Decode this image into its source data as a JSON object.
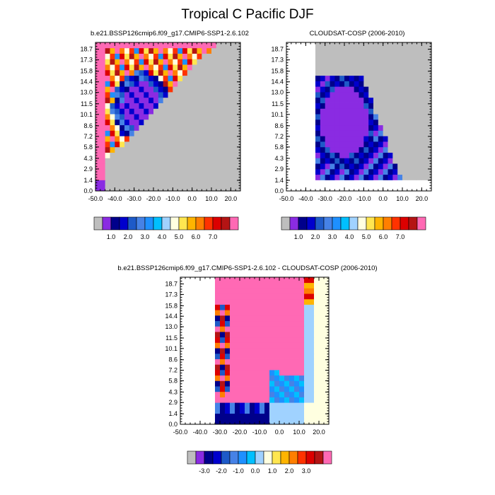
{
  "figure_title": "Tropical C Pacific DJF",
  "colors": {
    "nodata": "#bebebe",
    "pal_abs": [
      "#bebebe",
      "#8a2be2",
      "#00008b",
      "#0000cd",
      "#1e5ac8",
      "#4682e6",
      "#1e90ff",
      "#00bfff",
      "#a0d2ff",
      "#ffffe0",
      "#ffe650",
      "#ffb400",
      "#ff7f00",
      "#ff3200",
      "#dc0000",
      "#b41414",
      "#ff69b4"
    ],
    "pal_diff": [
      "#bebebe",
      "#8a2be2",
      "#00008b",
      "#0000cd",
      "#1e5ac8",
      "#4682e6",
      "#1e90ff",
      "#00bfff",
      "#a0d2ff",
      "#ffffe0",
      "#ffe650",
      "#ffb400",
      "#ff7f00",
      "#ff3200",
      "#dc0000",
      "#b41414",
      "#ff69b4"
    ]
  },
  "colorbar_abs": {
    "labels": [
      "1.0",
      "2.0",
      "3.0",
      "4.0",
      "5.0",
      "6.0",
      "7.0"
    ]
  },
  "colorbar_diff": {
    "labels": [
      "-3.0",
      "-2.0",
      "-1.0",
      "0.0",
      "1.0",
      "2.0",
      "3.0"
    ]
  },
  "chart_data": [
    {
      "type": "heatmap",
      "title": "b.e21.BSSP126cmip6.f09_g17.CMIP6-SSP1-2.6.102",
      "x_ticks": [
        "-50.0",
        "-40.0",
        "-30.0",
        "-20.0",
        "-10.0",
        "0.0",
        "10.0",
        "20.0"
      ],
      "y_ticks": [
        "0.0",
        "1.4",
        "2.9",
        "4.3",
        "5.8",
        "7.2",
        "8.6",
        "10.1",
        "11.5",
        "13.0",
        "14.4",
        "15.8",
        "17.3",
        "18.7"
      ],
      "xlim": [
        -50,
        25
      ],
      "ylim": [
        0,
        19.6
      ],
      "x_start": -50,
      "x_step": 2.5,
      "y_start": 0,
      "y_step": 0.72,
      "rows": [
        "0-----------------------------",
        "0-----------------------------",
        "0-----------------------------",
        "0-----------------------------",
        "0-----------------------------",
        "0-----------------------------",
        "0-------------------------",
        "0-----------------------------",
        "0---------------------------",
        "0----------------------",
        "0----------------------",
        "0-----------------------------",
        "0-----------------------------",
        "0------------------------------",
        "0---------------------------",
        "0---------------------------",
        "0---------------------------",
        "0---------------------------",
        "0---------------------------",
        "0---------------------------",
        "0-----------------------------",
        "0-----------------------------",
        "0-----------------------------",
        "0-----------------------------",
        "0-----------------------------",
        "0-----------------------------",
        "0-----------------------------"
      ]
    },
    {
      "type": "heatmap",
      "title": "CLOUDSAT-COSP (2006-2010)",
      "x_ticks": [
        "-50.0",
        "-40.0",
        "-30.0",
        "-20.0",
        "-10.0",
        "0.0",
        "10.0",
        "20.0"
      ],
      "y_ticks": [
        "0.0",
        "1.4",
        "2.9",
        "4.3",
        "5.8",
        "7.2",
        "8.6",
        "10.1",
        "11.5",
        "13.0",
        "14.4",
        "15.8",
        "17.3",
        "18.7"
      ],
      "xlim": [
        -50,
        25
      ],
      "ylim": [
        0,
        19.6
      ],
      "x_start": -50,
      "x_step": 2.5,
      "y_start": 0,
      "y_step": 0.72,
      "rows": []
    },
    {
      "type": "heatmap",
      "title": "b.e21.BSSP126cmip6.f09_g17.CMIP6-SSP1-2.6.102 - CLOUDSAT-COSP (2006-2010)",
      "x_ticks": [
        "-50.0",
        "-40.0",
        "-30.0",
        "-20.0",
        "-10.0",
        "0.0",
        "10.0",
        "20.0"
      ],
      "y_ticks": [
        "0.0",
        "1.4",
        "2.9",
        "4.3",
        "5.8",
        "7.2",
        "8.6",
        "10.1",
        "11.5",
        "13.0",
        "14.4",
        "15.8",
        "17.3",
        "18.7"
      ],
      "xlim": [
        -50,
        25
      ],
      "ylim": [
        0,
        19.6
      ],
      "x_start": -50,
      "x_step": 2.5,
      "y_start": 0,
      "y_step": 0.72,
      "rows": []
    }
  ]
}
